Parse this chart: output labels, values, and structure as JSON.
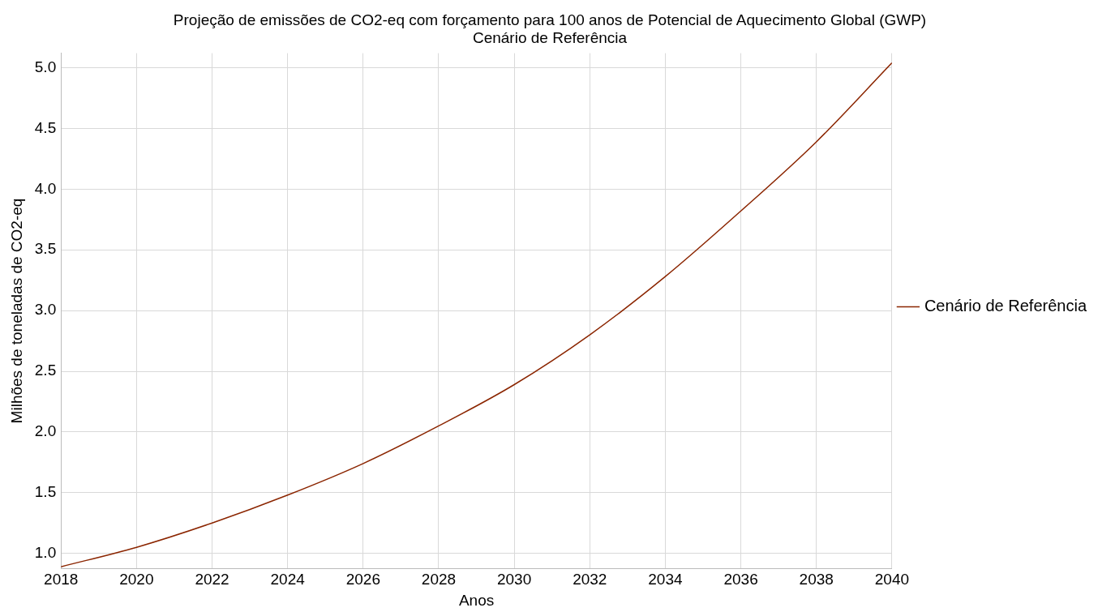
{
  "chart_data": {
    "type": "line",
    "title": "Projeção de emissões de CO2-eq com forçamento para 100 anos de Potencial de Aquecimento Global (GWP)",
    "subtitle": "Cenário de Referência",
    "xlabel": "Anos",
    "ylabel": "Milhões de toneladas de CO2-eq",
    "x": [
      2018,
      2020,
      2022,
      2024,
      2026,
      2028,
      2030,
      2032,
      2034,
      2036,
      2038,
      2040
    ],
    "series": [
      {
        "name": "Cenário de Referência",
        "color": "#8b2500",
        "values": [
          0.89,
          1.05,
          1.25,
          1.48,
          1.74,
          2.05,
          2.39,
          2.8,
          3.28,
          3.82,
          4.39,
          5.04
        ]
      }
    ],
    "xlim": [
      2018,
      2040
    ],
    "xticks": [
      2018,
      2020,
      2022,
      2024,
      2026,
      2028,
      2030,
      2032,
      2034,
      2036,
      2038,
      2040
    ],
    "ylim": [
      0.875,
      5.12
    ],
    "yticks": [
      {
        "value": 1,
        "label": "1.0"
      },
      {
        "value": 1.5,
        "label": "1.5"
      },
      {
        "value": 2,
        "label": "2.0"
      },
      {
        "value": 2.5,
        "label": "2.5"
      },
      {
        "value": 3,
        "label": "3.0"
      },
      {
        "value": 3.5,
        "label": "3.5"
      },
      {
        "value": 4,
        "label": "4.0"
      },
      {
        "value": 4.5,
        "label": "4.5"
      },
      {
        "value": 5,
        "label": "5.0"
      }
    ],
    "grid": true,
    "legend": "right",
    "marker": "none",
    "line_style": "solid"
  }
}
